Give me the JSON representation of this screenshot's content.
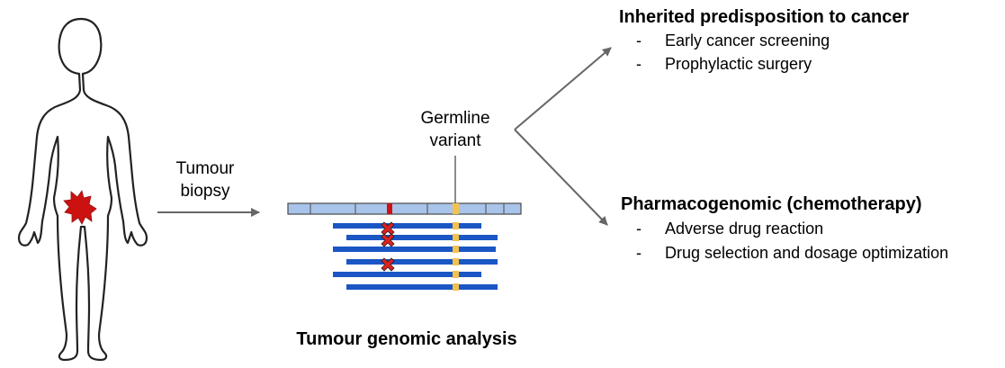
{
  "figure": {
    "biopsy_label": [
      "Tumour",
      "biopsy"
    ],
    "germline_label": [
      "Germline",
      "variant"
    ],
    "analysis_title": "Tumour genomic analysis",
    "outcomes": [
      {
        "heading": "Inherited predisposition to cancer",
        "items": [
          "Early cancer screening",
          "Prophylactic surgery"
        ]
      },
      {
        "heading": "Pharmacogenomic (chemotherapy)",
        "items": [
          "Adverse drug reaction",
          "Drug selection and dosage optimization"
        ]
      }
    ],
    "bullet_marker": "-",
    "colors": {
      "reference_fill": "#a9c4ea",
      "reference_stroke": "#4a4a4a",
      "read_bar": "#1a56c4",
      "germline_variant": "#f2c14e",
      "somatic_variant": "#cc1111",
      "tumour_star": "#cc1111",
      "arrow": "#666666",
      "outline": "#222222"
    },
    "icons": {
      "person": "human-body-outline-icon",
      "tumour": "tumour-starburst-icon",
      "somatic_mark": "red-x-mark-icon"
    }
  }
}
